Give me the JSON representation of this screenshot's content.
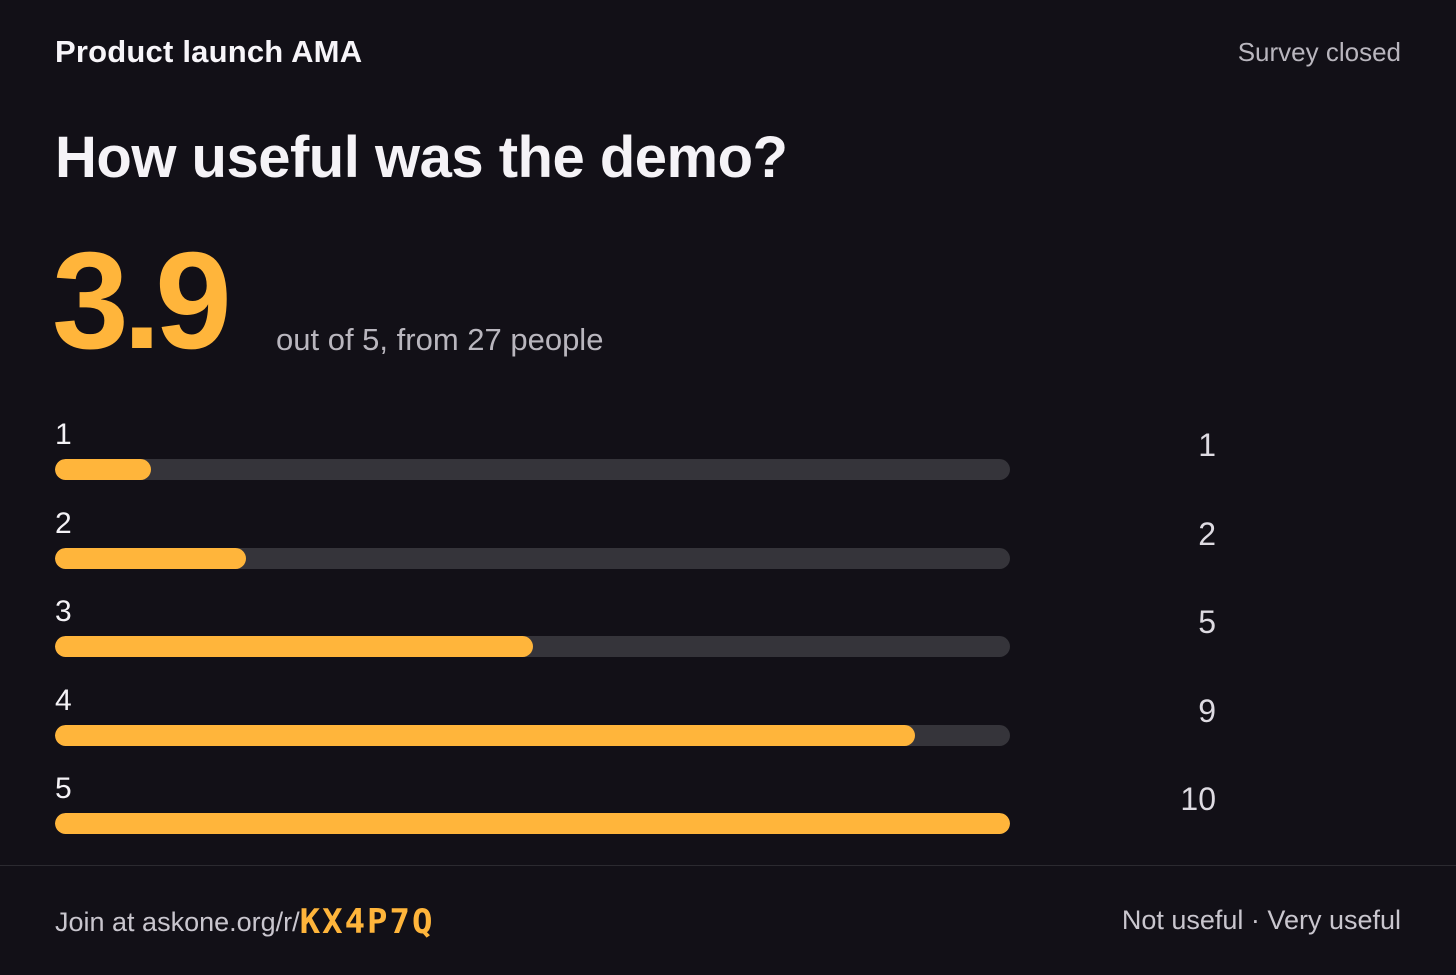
{
  "header": {
    "title": "Product launch AMA",
    "status": "Survey closed"
  },
  "question": "How useful was the demo?",
  "summary": {
    "score": "3.9",
    "caption": "out of 5, from 27 people"
  },
  "footer": {
    "join_prefix": "Join at askone.org/r/",
    "join_code": "KX4P7Q",
    "scale_labels": "Not useful · Very useful"
  },
  "colors": {
    "accent": "#ffb53b",
    "track": "#35343a",
    "background": "#121017"
  },
  "chart_data": {
    "type": "bar",
    "orientation": "horizontal",
    "categories": [
      "1",
      "2",
      "3",
      "4",
      "5"
    ],
    "values": [
      1,
      2,
      5,
      9,
      10
    ],
    "xlim": [
      0,
      10
    ],
    "grid": false,
    "legend": "none"
  }
}
